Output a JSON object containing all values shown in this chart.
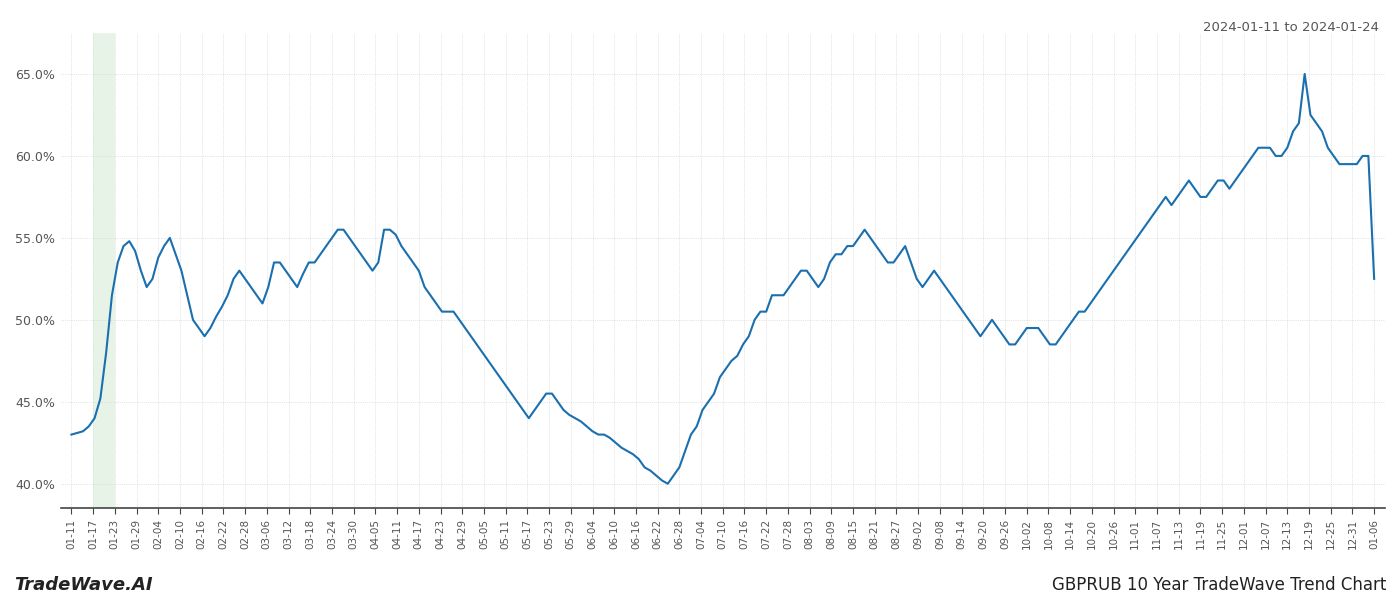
{
  "title_right": "2024-01-11 to 2024-01-24",
  "title_bottom_left": "TradeWave.AI",
  "title_bottom_right": "GBPRUB 10 Year TradeWave Trend Chart",
  "line_color": "#1a6faf",
  "line_width": 1.5,
  "shade_color": "#c8e6c9",
  "shade_alpha": 0.45,
  "ylim": [
    38.5,
    67.5
  ],
  "yticks": [
    40.0,
    45.0,
    50.0,
    55.0,
    60.0,
    65.0
  ],
  "background_color": "#ffffff",
  "grid_color": "#cccccc",
  "grid_style": "dotted",
  "x_labels": [
    "01-11",
    "01-17",
    "01-23",
    "01-29",
    "02-04",
    "02-10",
    "02-16",
    "02-22",
    "02-28",
    "03-06",
    "03-12",
    "03-18",
    "03-24",
    "03-30",
    "04-05",
    "04-11",
    "04-17",
    "04-23",
    "04-29",
    "05-05",
    "05-11",
    "05-17",
    "05-23",
    "05-29",
    "06-04",
    "06-10",
    "06-16",
    "06-22",
    "06-28",
    "07-04",
    "07-10",
    "07-16",
    "07-22",
    "07-28",
    "08-03",
    "08-09",
    "08-15",
    "08-21",
    "08-27",
    "09-02",
    "09-08",
    "09-14",
    "09-20",
    "09-26",
    "10-02",
    "10-08",
    "10-14",
    "10-20",
    "10-26",
    "11-01",
    "11-07",
    "11-13",
    "11-19",
    "11-25",
    "12-01",
    "12-07",
    "12-13",
    "12-19",
    "12-25",
    "12-31",
    "01-06"
  ],
  "shade_label_start": "01-17",
  "shade_label_end": "01-23",
  "y_values": [
    43.0,
    43.1,
    43.2,
    43.5,
    44.0,
    45.2,
    48.0,
    51.5,
    53.5,
    54.5,
    54.8,
    54.2,
    53.0,
    52.0,
    52.5,
    53.8,
    54.5,
    55.0,
    54.0,
    53.0,
    51.5,
    50.0,
    49.5,
    49.0,
    49.5,
    50.2,
    50.8,
    51.5,
    52.5,
    53.0,
    52.5,
    52.0,
    51.5,
    51.0,
    52.0,
    53.5,
    53.5,
    53.0,
    52.5,
    52.0,
    52.8,
    53.5,
    53.5,
    54.0,
    54.5,
    55.0,
    55.5,
    55.5,
    55.0,
    54.5,
    54.0,
    53.5,
    53.0,
    53.5,
    55.5,
    55.5,
    55.2,
    54.5,
    54.0,
    53.5,
    53.0,
    52.0,
    51.5,
    51.0,
    50.5,
    50.5,
    50.5,
    50.0,
    49.5,
    49.0,
    48.5,
    48.0,
    47.5,
    47.0,
    46.5,
    46.0,
    45.5,
    45.0,
    44.5,
    44.0,
    44.5,
    45.0,
    45.5,
    45.5,
    45.0,
    44.5,
    44.2,
    44.0,
    43.8,
    43.5,
    43.2,
    43.0,
    43.0,
    42.8,
    42.5,
    42.2,
    42.0,
    41.8,
    41.5,
    41.0,
    40.8,
    40.5,
    40.2,
    40.0,
    40.5,
    41.0,
    42.0,
    43.0,
    43.5,
    44.5,
    45.0,
    45.5,
    46.5,
    47.0,
    47.5,
    47.8,
    48.5,
    49.0,
    50.0,
    50.5,
    50.5,
    51.5,
    51.5,
    51.5,
    52.0,
    52.5,
    53.0,
    53.0,
    52.5,
    52.0,
    52.5,
    53.5,
    54.0,
    54.0,
    54.5,
    54.5,
    55.0,
    55.5,
    55.0,
    54.5,
    54.0,
    53.5,
    53.5,
    54.0,
    54.5,
    53.5,
    52.5,
    52.0,
    52.5,
    53.0,
    52.5,
    52.0,
    51.5,
    51.0,
    50.5,
    50.0,
    49.5,
    49.0,
    49.5,
    50.0,
    49.5,
    49.0,
    48.5,
    48.5,
    49.0,
    49.5,
    49.5,
    49.5,
    49.0,
    48.5,
    48.5,
    49.0,
    49.5,
    50.0,
    50.5,
    50.5,
    51.0,
    51.5,
    52.0,
    52.5,
    53.0,
    53.5,
    54.0,
    54.5,
    55.0,
    55.5,
    56.0,
    56.5,
    57.0,
    57.5,
    57.0,
    57.5,
    58.0,
    58.5,
    58.0,
    57.5,
    57.5,
    58.0,
    58.5,
    58.5,
    58.0,
    58.5,
    59.0,
    59.5,
    60.0,
    60.5,
    60.5,
    60.5,
    60.0,
    60.0,
    60.5,
    61.5,
    62.0,
    65.0,
    62.5,
    62.0,
    61.5,
    60.5,
    60.0,
    59.5,
    59.5,
    59.5,
    59.5,
    60.0,
    60.0,
    52.5
  ]
}
